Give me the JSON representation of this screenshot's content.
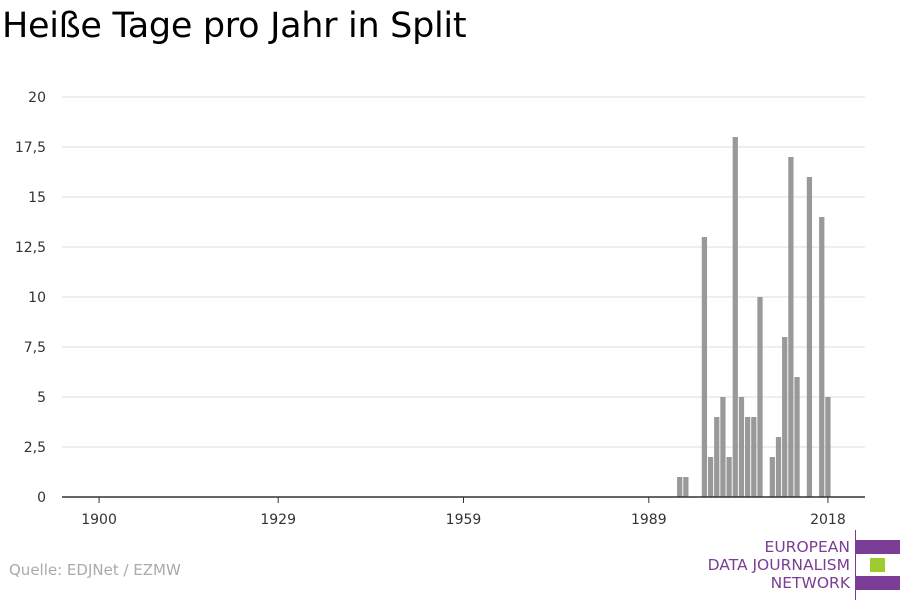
{
  "title": "Heiße Tage pro Jahr in Split",
  "source": "Quelle: EDJNet / EZMW",
  "logo": {
    "lines": [
      "EUROPEAN",
      "DATA JOURNALISM",
      "NETWORK"
    ],
    "colors": {
      "purple": "#7b3d95",
      "green": "#9ccc2e"
    }
  },
  "colors": {
    "bar": "#999999",
    "grid": "#dddddd",
    "axis": "#333333",
    "text": "#333333"
  },
  "chart_data": {
    "type": "bar",
    "title": "Heiße Tage pro Jahr in Split",
    "xlabel": "",
    "ylabel": "",
    "xlim": [
      1894,
      2024
    ],
    "ylim": [
      0,
      20
    ],
    "yticks": [
      0,
      2.5,
      5,
      7.5,
      10,
      12.5,
      15,
      17.5,
      20
    ],
    "ytick_labels": [
      "0",
      "2,5",
      "5",
      "7,5",
      "10",
      "12,5",
      "15",
      "17,5",
      "20"
    ],
    "xticks": [
      1900,
      1929,
      1959,
      1989,
      2018
    ],
    "xtick_labels": [
      "1900",
      "1929",
      "1959",
      "1989",
      "2018"
    ],
    "grid": true,
    "years": [
      1994,
      1995,
      1996,
      1997,
      1998,
      1999,
      2000,
      2001,
      2002,
      2003,
      2004,
      2005,
      2006,
      2007,
      2008,
      2009,
      2010,
      2011,
      2012,
      2013,
      2014,
      2015,
      2016,
      2017,
      2018,
      2019
    ],
    "values": [
      1,
      1,
      0,
      0,
      13,
      2,
      4,
      5,
      2,
      18,
      5,
      4,
      4,
      10,
      0,
      2,
      3,
      8,
      17,
      6,
      0,
      16,
      0,
      14,
      5,
      0
    ]
  }
}
